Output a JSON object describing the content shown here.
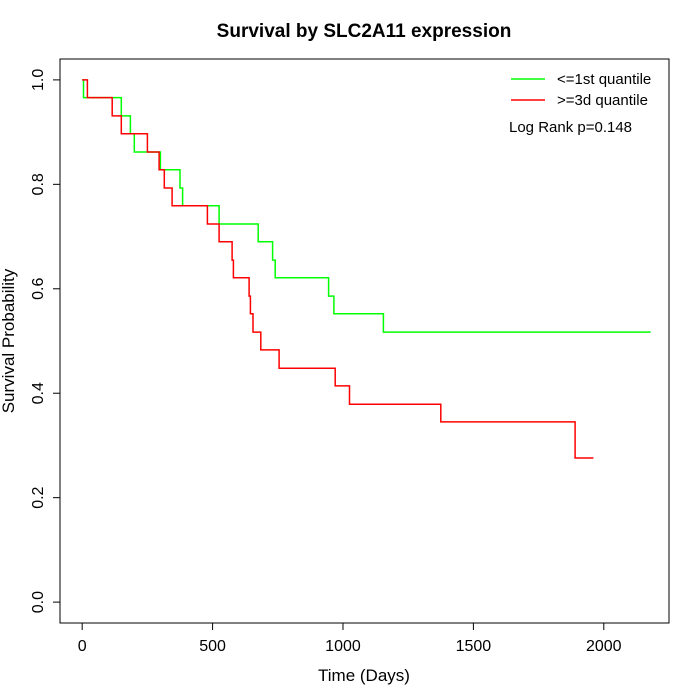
{
  "chart_data": {
    "type": "line",
    "title": "Survival by SLC2A11 expression",
    "xlabel": "Time (Days)",
    "ylabel": "Survival Probability",
    "xlim": [
      -85,
      2250
    ],
    "ylim": [
      -0.04,
      1.04
    ],
    "x_ticks": [
      0,
      500,
      1000,
      1500,
      2000
    ],
    "x_tick_labels": [
      "0",
      "500",
      "1000",
      "1500",
      "2000"
    ],
    "y_ticks": [
      0.0,
      0.2,
      0.4,
      0.6,
      0.8,
      1.0
    ],
    "y_tick_labels": [
      "0.0",
      "0.2",
      "0.4",
      "0.6",
      "0.8",
      "1.0"
    ],
    "grid": false,
    "legend_position": "top-right",
    "annotation": "Log Rank p=0.148",
    "series": [
      {
        "name": "<=1st quantile",
        "color": "#00ff00",
        "x": [
          0,
          5,
          150,
          185,
          200,
          250,
          300,
          375,
          385,
          525,
          675,
          730,
          740,
          745,
          945,
          965,
          1155,
          2180
        ],
        "y": [
          1.0,
          0.966,
          0.931,
          0.897,
          0.862,
          0.862,
          0.828,
          0.793,
          0.759,
          0.724,
          0.69,
          0.655,
          0.621,
          0.621,
          0.586,
          0.552,
          0.517,
          0.517
        ]
      },
      {
        "name": ">=3d quantile",
        "color": "#ff0000",
        "x": [
          0,
          20,
          115,
          150,
          250,
          295,
          315,
          345,
          480,
          525,
          575,
          580,
          640,
          645,
          655,
          685,
          755,
          970,
          1025,
          1375,
          1890,
          1960
        ],
        "y": [
          1.0,
          0.966,
          0.931,
          0.897,
          0.862,
          0.828,
          0.793,
          0.759,
          0.724,
          0.69,
          0.655,
          0.621,
          0.586,
          0.552,
          0.517,
          0.483,
          0.448,
          0.414,
          0.379,
          0.345,
          0.276,
          0.276
        ]
      }
    ]
  }
}
